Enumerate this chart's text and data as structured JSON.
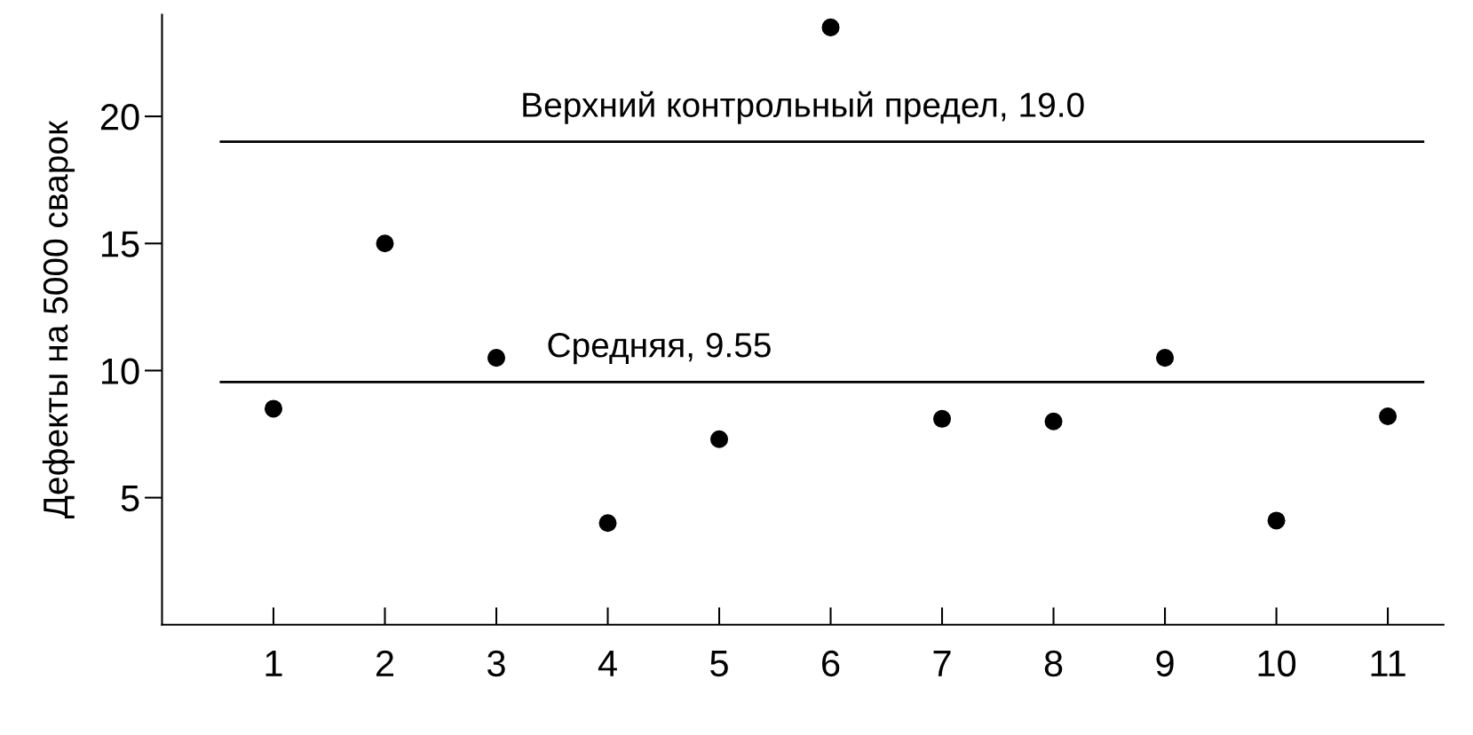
{
  "chart_data": {
    "type": "scatter",
    "ylabel": "Дефекты на 5000 сварок",
    "x": [
      1,
      2,
      3,
      4,
      5,
      6,
      7,
      8,
      9,
      10,
      11
    ],
    "series": [
      {
        "color": "#000000",
        "values": [
          8.5,
          15,
          10.5,
          4,
          7.3,
          23.5,
          8.1,
          8,
          10.5,
          4.1,
          8.2
        ]
      }
    ],
    "xlim": [
      0,
      11.5
    ],
    "xticks": [
      1,
      2,
      3,
      4,
      5,
      6,
      7,
      8,
      9,
      10,
      11
    ],
    "ylim": [
      0,
      24
    ],
    "yticks": [
      5,
      10,
      15,
      20
    ],
    "ref_lines": [
      {
        "axis": "y",
        "value": 19.0,
        "label": "Верхний контрольный предел, 19.0",
        "color": "#000000"
      },
      {
        "axis": "y",
        "value": 9.55,
        "label": "Средняя, 9.55",
        "color": "#000000"
      }
    ],
    "marker": "circle",
    "grid": false,
    "legend": false
  }
}
